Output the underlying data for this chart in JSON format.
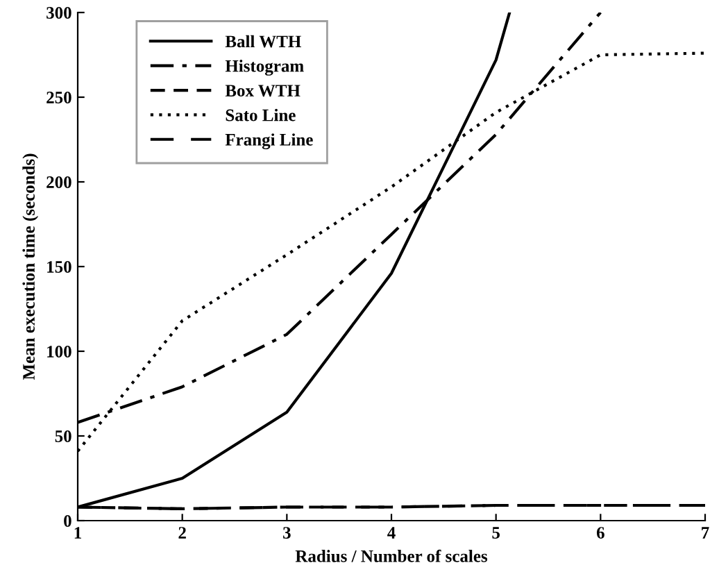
{
  "chart_data": {
    "type": "line",
    "xlabel": "Radius / Number of scales",
    "ylabel": "Mean execution time (seconds)",
    "xlim": [
      1,
      7
    ],
    "xticks": [
      1,
      2,
      3,
      4,
      5,
      6,
      7
    ],
    "ylim": [
      0,
      300
    ],
    "yticks": [
      0,
      50,
      100,
      150,
      200,
      250,
      300
    ],
    "legend": "top left",
    "grid": false,
    "series": [
      {
        "name": "Ball WTH",
        "color": "#000000",
        "line_style": "solid",
        "x": [
          1,
          2,
          3,
          4,
          5,
          5.13
        ],
        "values": [
          8,
          25,
          64,
          146,
          272,
          300
        ]
      },
      {
        "name": "Histogram",
        "color": "#000000",
        "line_style": "dashdot",
        "x": [
          1,
          2,
          3,
          4,
          5,
          6
        ],
        "values": [
          58,
          79,
          110,
          169,
          228,
          300
        ]
      },
      {
        "name": "Box WTH",
        "color": "#000000",
        "line_style": "dashed",
        "x": [
          1,
          2,
          3,
          4,
          5,
          6,
          7
        ],
        "values": [
          8,
          7,
          8,
          8,
          9,
          9,
          9
        ]
      },
      {
        "name": "Sato Line",
        "color": "#000000",
        "line_style": "dotted",
        "x": [
          1,
          2,
          3,
          4,
          5,
          6,
          7
        ],
        "values": [
          41,
          118,
          157,
          197,
          241,
          275,
          276
        ]
      },
      {
        "name": "Frangi Line",
        "color": "#000000",
        "line_style": "longdash",
        "x": [
          1,
          2,
          3,
          4,
          5,
          6,
          7
        ],
        "values": [
          8,
          7,
          8,
          8,
          9,
          9,
          9
        ]
      }
    ]
  }
}
